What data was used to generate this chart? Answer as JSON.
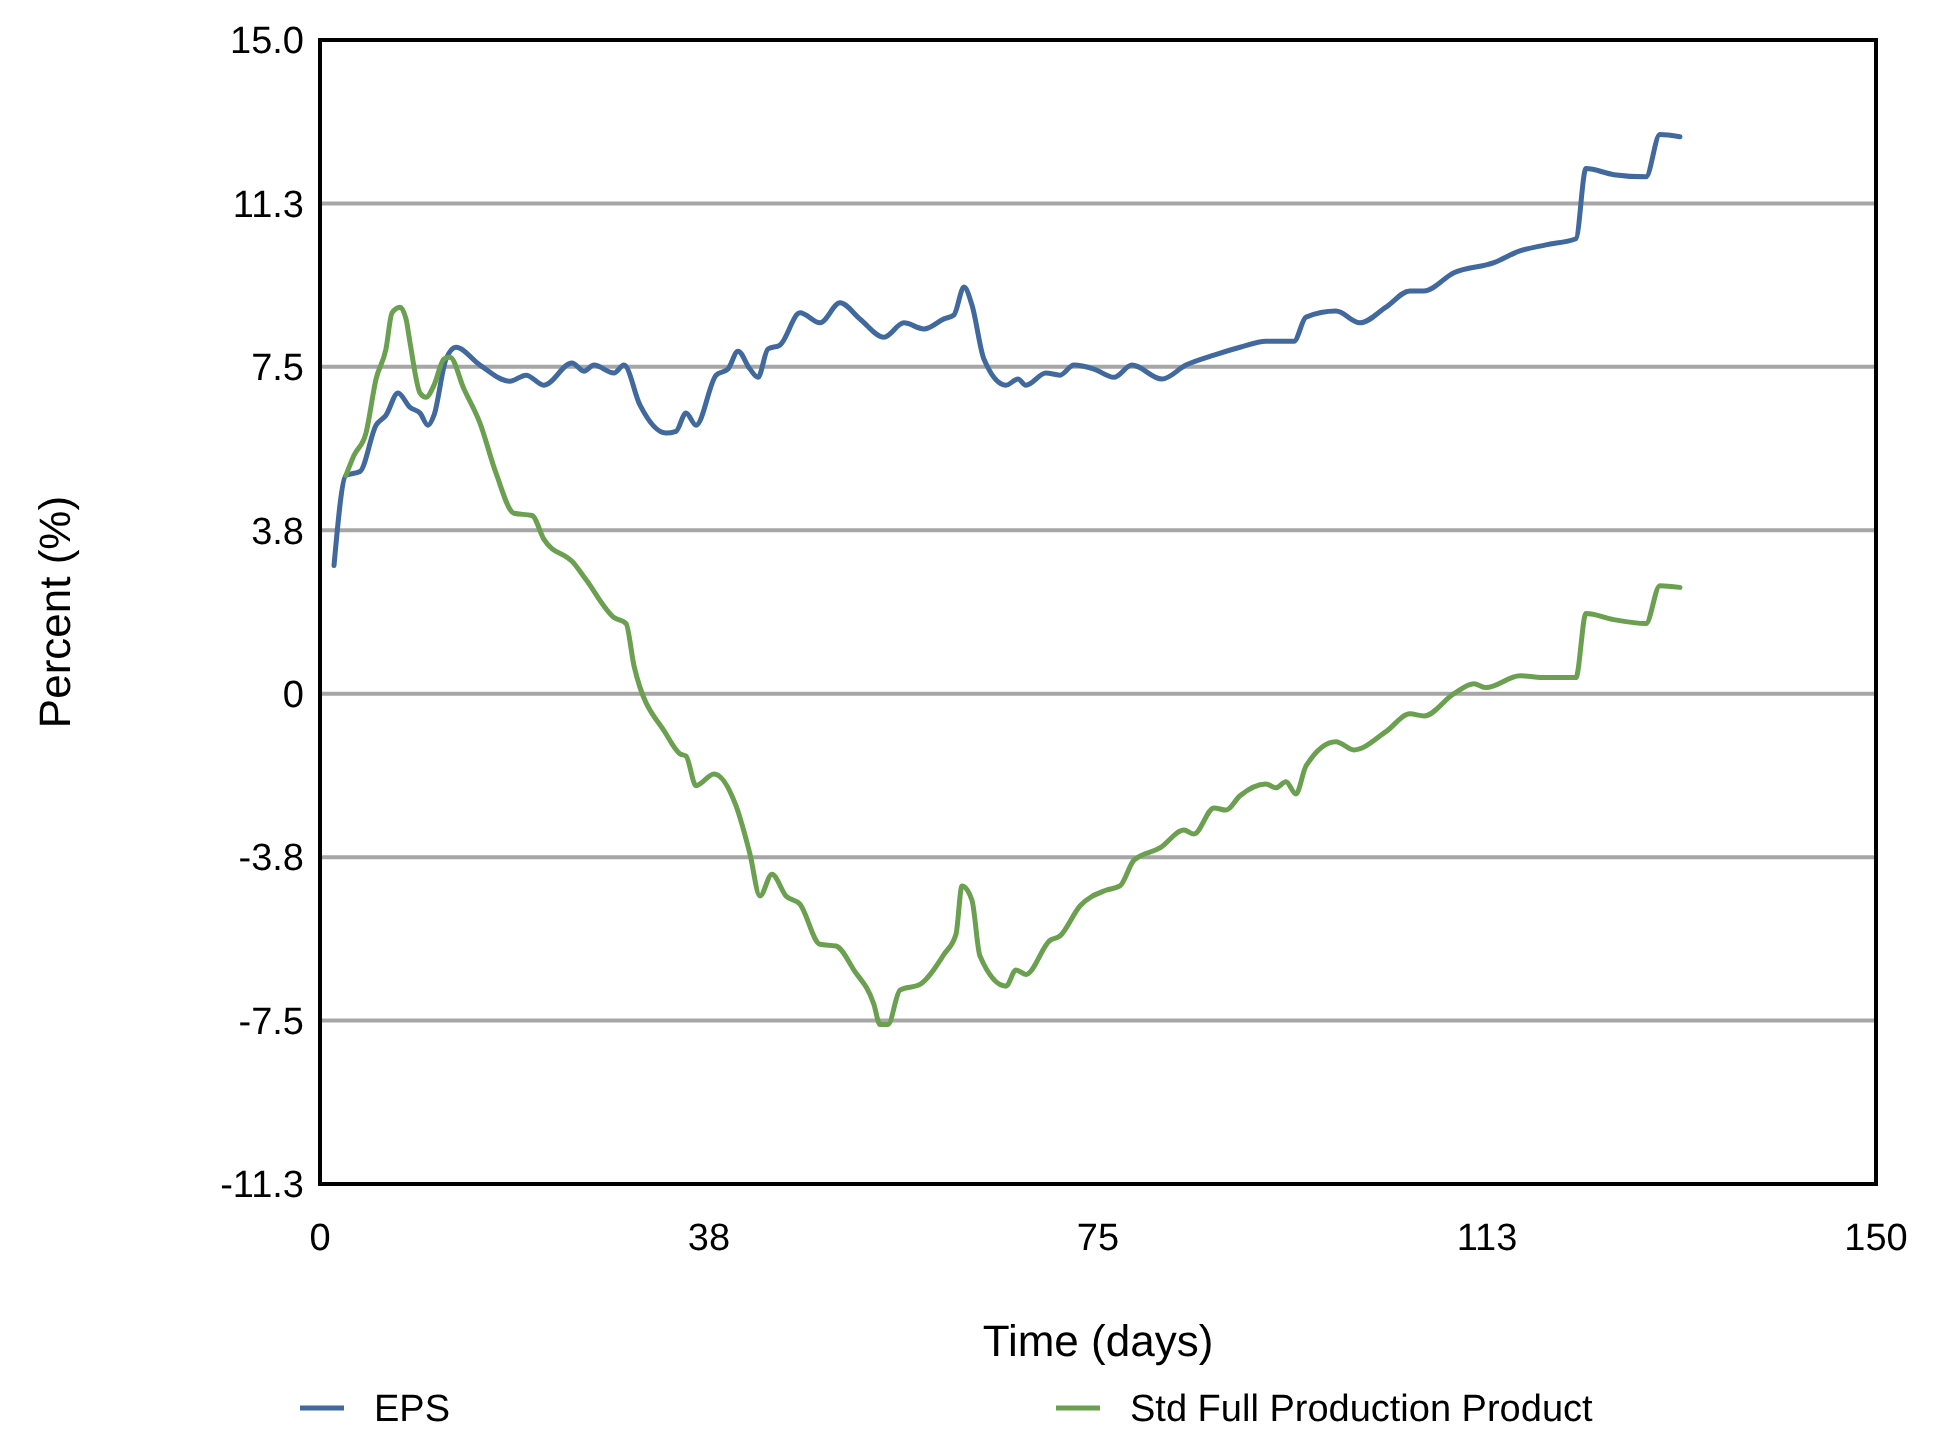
{
  "chart_data": {
    "type": "line",
    "xlabel": "Time (days)",
    "ylabel": "Percent (%)",
    "xlim": [
      0,
      150
    ],
    "xticks": [
      0,
      {
        "value": 37.5,
        "label": "38"
      },
      75,
      {
        "value": 112.5,
        "label": "113"
      },
      150
    ],
    "ylim": [
      -11.25,
      15
    ],
    "yticks": [
      {
        "value": -11.25,
        "label": "-11.3"
      },
      {
        "value": -7.5,
        "label": "-7.5"
      },
      {
        "value": -3.75,
        "label": "-3.8"
      },
      0,
      {
        "value": 3.75,
        "label": "3.8"
      },
      {
        "value": 7.5,
        "label": "7.5"
      },
      {
        "value": 11.25,
        "label": "11.3"
      },
      {
        "value": 15,
        "label": "15.0"
      }
    ],
    "grid": "y",
    "legend": "bottom",
    "marker": "none",
    "line_style": "solid",
    "series": [
      {
        "name": "EPS",
        "color": "#41699e",
        "x": [
          1.35,
          2.5,
          3.86,
          5.4,
          6.36,
          7.52,
          8.68,
          9.64,
          10.41,
          10.99,
          12.15,
          13.11,
          15.42,
          18.31,
          19.86,
          21.59,
          24.29,
          25.45,
          26.41,
          28.34,
          29.3,
          30.85,
          33.35,
          34.32,
          35.28,
          36.25,
          38.18,
          39.33,
          40.29,
          41.45,
          42.22,
          43.18,
          44.34,
          46.27,
          48.2,
          50.13,
          52.05,
          54.37,
          56.29,
          58.22,
          60.15,
          61.11,
          62.08,
          62.85,
          64.0,
          66.13,
          67.28,
          68.05,
          69.98,
          71.33,
          72.68,
          74.61,
          76.54,
          78.27,
          81.16,
          83.48,
          86.18,
          88.69,
          91.19,
          93.89,
          95.05,
          97.94,
          100.25,
          102.76,
          105.07,
          106.42,
          109.31,
          113.17,
          115.67,
          118.18,
          121.07,
          122.04,
          124.73,
          127.82,
          129.17,
          131.1
        ],
        "values": [
          2.94,
          5.01,
          5.1,
          6.16,
          6.39,
          6.9,
          6.57,
          6.44,
          6.16,
          6.39,
          7.68,
          7.95,
          7.54,
          7.17,
          7.31,
          7.08,
          7.59,
          7.4,
          7.54,
          7.36,
          7.54,
          6.62,
          5.98,
          6.02,
          6.44,
          6.16,
          7.31,
          7.45,
          7.86,
          7.45,
          7.26,
          7.91,
          8.0,
          8.74,
          8.51,
          8.97,
          8.6,
          8.18,
          8.51,
          8.37,
          8.6,
          8.69,
          9.33,
          8.92,
          7.68,
          7.08,
          7.22,
          7.08,
          7.36,
          7.31,
          7.54,
          7.45,
          7.26,
          7.54,
          7.22,
          7.54,
          7.77,
          7.95,
          8.09,
          8.09,
          8.64,
          8.78,
          8.51,
          8.87,
          9.24,
          9.24,
          9.66,
          9.89,
          10.16,
          10.3,
          10.44,
          12.05,
          11.91,
          11.86,
          12.83,
          12.78
        ]
      },
      {
        "name": "Std Full Production Product",
        "color": "#6aa050",
        "x": [
          2.5,
          3.28,
          4.43,
          5.4,
          6.36,
          6.94,
          7.71,
          8.29,
          8.68,
          9.64,
          10.22,
          10.99,
          11.95,
          12.53,
          13.88,
          15.42,
          16.97,
          18.7,
          20.44,
          21.59,
          24.48,
          25.64,
          28.34,
          29.5,
          30.27,
          33.35,
          34.7,
          35.28,
          36.25,
          37.98,
          40.1,
          41.45,
          42.41,
          43.57,
          44.92,
          46.27,
          48.2,
          49.74,
          51.47,
          53.4,
          53.98,
          54.75,
          55.91,
          57.84,
          60.15,
          61.31,
          61.89,
          62.85,
          63.62,
          66.13,
          67.09,
          68.05,
          70.37,
          71.33,
          73.26,
          75.77,
          77.12,
          78.47,
          80.97,
          83.29,
          84.25,
          86.18,
          87.33,
          88.69,
          91.19,
          92.15,
          93.12,
          94.08,
          95.05,
          97.94,
          99.67,
          102.76,
          105.07,
          106.42,
          109.31,
          111.24,
          112.4,
          115.67,
          118.18,
          121.07,
          122.04,
          124.73,
          127.82,
          129.17,
          131.1
        ],
        "values": [
          5.01,
          5.47,
          5.98,
          7.22,
          7.91,
          8.74,
          8.87,
          8.6,
          8.05,
          6.9,
          6.8,
          7.08,
          7.68,
          7.72,
          6.99,
          6.21,
          5.06,
          4.14,
          4.09,
          3.54,
          2.99,
          2.62,
          1.75,
          1.61,
          0.64,
          -0.92,
          -1.38,
          -1.43,
          -2.11,
          -1.84,
          -2.57,
          -3.68,
          -4.64,
          -4.14,
          -4.64,
          -4.83,
          -5.75,
          -5.79,
          -6.34,
          -7.13,
          -7.59,
          -7.59,
          -6.8,
          -6.67,
          -5.98,
          -5.52,
          -4.41,
          -4.74,
          -6.02,
          -6.71,
          -6.34,
          -6.44,
          -5.66,
          -5.56,
          -4.87,
          -4.51,
          -4.41,
          -3.82,
          -3.54,
          -3.13,
          -3.22,
          -2.62,
          -2.67,
          -2.34,
          -2.07,
          -2.16,
          -2.02,
          -2.3,
          -1.66,
          -1.1,
          -1.29,
          -0.87,
          -0.46,
          -0.51,
          0,
          0.23,
          0.14,
          0.41,
          0.37,
          0.37,
          1.84,
          1.7,
          1.61,
          2.48,
          2.44
        ]
      }
    ]
  }
}
